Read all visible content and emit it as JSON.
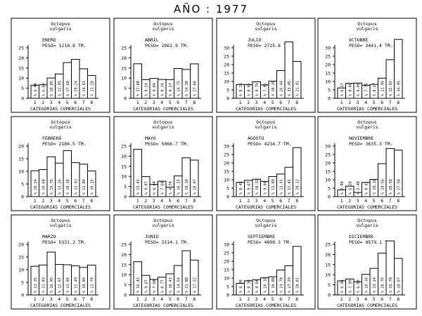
{
  "page": {
    "title": "AÑO : 1977"
  },
  "chart_data": [
    {
      "type": "bar",
      "species": "Octopus vulgaris",
      "month": "ENERO",
      "peso": "PESO= 1218.8 TM.",
      "xlabel": "CATEGORIAS COMERCIALES",
      "categories": [
        "1",
        "2",
        "3",
        "4",
        "5",
        "6",
        "7",
        "8"
      ],
      "yticks": [
        "0",
        "5",
        "10",
        "15",
        "20",
        "25"
      ],
      "ylim": [
        0,
        25
      ],
      "values": [
        6.48,
        6.69,
        10.05,
        12.05,
        17.68,
        19.24,
        14.61,
        11.28
      ],
      "bar_labels": [
        "% 6.48",
        "% 6.69",
        "% 10.05",
        "% 12.05",
        "% 17.68",
        "% 19.24",
        "% 14.61",
        "% 11.28"
      ]
    },
    {
      "type": "bar",
      "species": "Octopus vulgaris",
      "month": "ABRIL",
      "peso": "PESO= 2962.9 TM.",
      "xlabel": "CATEGORIAS COMERCIALES",
      "categories": [
        "1",
        "2",
        "3",
        "4",
        "5",
        "6",
        "7",
        "8"
      ],
      "yticks": [
        "0",
        "5",
        "10",
        "15",
        "20",
        "25"
      ],
      "ylim": [
        0,
        25
      ],
      "values": [
        17.08,
        9.24,
        9.84,
        9.34,
        9.27,
        14.75,
        14.28,
        17.04
      ],
      "bar_labels": [
        "% 17.08",
        "% 9.24",
        "% 9.84",
        "% 9.34",
        "% 9.27",
        "% 14.75",
        "% 14.28",
        "% 17.04"
      ]
    },
    {
      "type": "bar",
      "species": "Octopus vulgaris",
      "month": "JULIO",
      "peso": "PESO= 2725.8 TM.",
      "xlabel": "CATEGORIAS COMERCIALES",
      "categories": [
        "1",
        "2",
        "3",
        "4",
        "5",
        "6",
        "7",
        "8"
      ],
      "yticks": [
        "0",
        "5",
        "10",
        "15",
        "20",
        "25",
        "30"
      ],
      "ylim": [
        0,
        30
      ],
      "values": [
        8.21,
        8.06,
        9.79,
        7.91,
        10.15,
        16.44,
        33.45,
        21.91
      ],
      "bar_labels": [
        "% 8.21",
        "% 8.06",
        "% 9.79",
        "% 7.91",
        "% 10.15",
        "% 16.44",
        "% 33.45",
        "% 21.91"
      ]
    },
    {
      "type": "bar",
      "species": "Octopus vulgaris",
      "month": "OCTUBRE",
      "peso": "PESO= 3441.4 TM.",
      "xlabel": "CATEGORIAS COMERCIALES",
      "categories": [
        "1",
        "2",
        "3",
        "4",
        "5",
        "6",
        "7",
        "8"
      ],
      "yticks": [
        "0",
        "5",
        "10",
        "15",
        "20",
        "25",
        "30"
      ],
      "ylim": [
        0,
        30
      ],
      "values": [
        6.17,
        8.86,
        9.05,
        7.75,
        8.27,
        11.96,
        22.92,
        34.95
      ],
      "bar_labels": [
        "% 6.17",
        "% 8.86",
        "% 9.05",
        "% 7.75",
        "% 8.27",
        "% 11.96",
        "% 22.92",
        "% 34.95"
      ]
    },
    {
      "type": "bar",
      "species": "Octopus vulgaris",
      "month": "FEBRERO",
      "peso": "PESO= 2186.5 TM.",
      "xlabel": "CATEGORIAS COMERCIALES",
      "categories": [
        "1",
        "2",
        "3",
        "4",
        "5",
        "6",
        "7",
        "8"
      ],
      "yticks": [
        "0",
        "5",
        "10",
        "15",
        "20"
      ],
      "ylim": [
        0,
        20
      ],
      "values": [
        10.24,
        10.68,
        15.75,
        13.26,
        18.18,
        13.43,
        12.84,
        10.15
      ],
      "bar_labels": [
        "% 10.24",
        "% 10.68",
        "% 15.75",
        "% 13.26",
        "% 18.18",
        "% 13.43",
        "% 12.84",
        "% 10.15"
      ]
    },
    {
      "type": "bar",
      "species": "Octopus vulgaris",
      "month": "MAYO",
      "peso": "PESO= 5066.7 TM.",
      "xlabel": "CATEGORIAS COMERCIALES",
      "categories": [
        "1",
        "2",
        "3",
        "4",
        "5",
        "6",
        "7",
        "8"
      ],
      "yticks": [
        "0",
        "5",
        "10",
        "15",
        "20",
        "25"
      ],
      "ylim": [
        0,
        25
      ],
      "values": [
        23.41,
        9.87,
        6.04,
        7.6,
        4.7,
        10.25,
        19.18,
        18.07
      ],
      "bar_labels": [
        "% 23.41",
        "% 9.87",
        "% 6.04",
        "% 7.60",
        "% 4.70",
        "% 10.25",
        "% 19.18",
        "% 18.07"
      ]
    },
    {
      "type": "bar",
      "species": "Octopus vulgaris",
      "month": "AGOSTO",
      "peso": "PESO= 4234.7 TM.",
      "xlabel": "CATEGORIAS COMERCIALES",
      "categories": [
        "1",
        "2",
        "3",
        "4",
        "5",
        "6",
        "7",
        "8"
      ],
      "yticks": [
        "0",
        "5",
        "10",
        "15",
        "20",
        "25",
        "30"
      ],
      "ylim": [
        0,
        30
      ],
      "values": [
        8.45,
        9.67,
        10.32,
        9.04,
        11.89,
        13.41,
        17.42,
        29.12
      ],
      "bar_labels": [
        "% 8.45",
        "% 9.67",
        "% 10.32",
        "% 9.04",
        "% 11.89",
        "% 13.41",
        "% 17.42",
        "% 29.12"
      ]
    },
    {
      "type": "bar",
      "species": "Octopus vulgaris",
      "month": "NOVIEMBRE",
      "peso": "PESO= 3635.3 TM.",
      "xlabel": "CATEGORIAS COMERCIALES",
      "categories": [
        "1",
        "2",
        "3",
        "4",
        "5",
        "6",
        "7",
        "8"
      ],
      "yticks": [
        "0",
        "5",
        "10",
        "15",
        "20",
        "25",
        "30"
      ],
      "ylim": [
        0,
        30
      ],
      "values": [
        3.98,
        6.2,
        2.48,
        8.41,
        10.18,
        19.56,
        28.58,
        27.58
      ],
      "bar_labels": [
        "% 3.98",
        "% 6.20",
        "% 2.48",
        "% 8.41",
        "% 10.18",
        "% 19.56",
        "% 28.58",
        "% 27.58"
      ]
    },
    {
      "type": "bar",
      "species": "Octopus vulgaris",
      "month": "MARZO",
      "peso": "PESO= 5331.2 TM.",
      "xlabel": "CATEGORIAS COMERCIALES",
      "categories": [
        "1",
        "2",
        "3",
        "4",
        "5",
        "6",
        "7",
        "8"
      ],
      "yticks": [
        "0",
        "5",
        "10",
        "15",
        "20"
      ],
      "ylim": [
        0,
        20
      ],
      "values": [
        11.35,
        11.83,
        16.95,
        12.07,
        11.94,
        11.49,
        10.89,
        11.79
      ],
      "bar_labels": [
        "% 11.35",
        "% 11.83",
        "% 16.95",
        "% 12.07",
        "% 11.94",
        "% 11.49",
        "% 10.89",
        "% 11.79"
      ]
    },
    {
      "type": "bar",
      "species": "Octopus vulgaris",
      "month": "JUNIO",
      "peso": "PESO= 3114.1 TM.",
      "xlabel": "CATEGORIAS COMERCIALES",
      "categories": [
        "1",
        "2",
        "3",
        "4",
        "5",
        "6",
        "7",
        "8"
      ],
      "yticks": [
        "0",
        "5",
        "10",
        "15",
        "20",
        "25"
      ],
      "ylim": [
        0,
        25
      ],
      "values": [
        16.42,
        9.67,
        7.68,
        8.77,
        10.43,
        14.54,
        21.88,
        17.22
      ],
      "bar_labels": [
        "% 16.42",
        "% 9.67",
        "% 7.68",
        "% 8.77",
        "% 10.43",
        "% 14.54",
        "% 21.88",
        "% 17.22"
      ]
    },
    {
      "type": "bar",
      "species": "Octopus vulgaris",
      "month": "SEPTIEMBRE",
      "peso": "PESO= 4898.3 TM.",
      "xlabel": "CATEGORIAS COMERCIALES",
      "categories": [
        "1",
        "2",
        "3",
        "4",
        "5",
        "6",
        "7",
        "8"
      ],
      "yticks": [
        "0",
        "5",
        "10",
        "15",
        "20",
        "25",
        "30"
      ],
      "ylim": [
        0,
        30
      ],
      "values": [
        6.9,
        8.38,
        9.04,
        10.18,
        10.8,
        14.78,
        17.29,
        28.81
      ],
      "bar_labels": [
        "% 6.90",
        "% 8.38",
        "% 9.04",
        "% 10.18",
        "% 10.80",
        "% 14.78",
        "% 17.29",
        "% 28.81"
      ]
    },
    {
      "type": "bar",
      "species": "Octopus vulgaris",
      "month": "DICIEMBRE",
      "peso": "PESO= 8579.1 TM.",
      "xlabel": "CATEGORIAS COMERCIALES",
      "categories": [
        "1",
        "2",
        "3",
        "4",
        "5",
        "6",
        "7",
        "8"
      ],
      "yticks": [
        "0",
        "5",
        "10",
        "15",
        "20",
        "25"
      ],
      "ylim": [
        0,
        25
      ],
      "values": [
        6.96,
        7.89,
        6.5,
        10.18,
        13.14,
        20.7,
        26.7,
        18.07
      ],
      "bar_labels": [
        "% 6.96",
        "% 7.89",
        "% 6.50",
        "% 10.18",
        "% 13.14",
        "% 20.70",
        "% 26.70",
        "% 18.07"
      ]
    }
  ]
}
